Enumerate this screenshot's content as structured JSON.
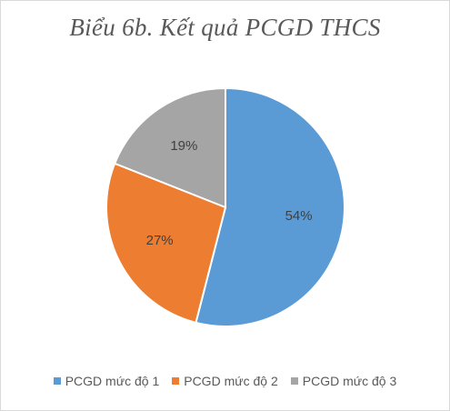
{
  "chart_data": {
    "type": "pie",
    "title": "Biểu 6b. Kết quả PCGD THCS",
    "categories": [
      "PCGD mức độ 1",
      "PCGD mức độ 2",
      "PCGD mức độ 3"
    ],
    "values": [
      54,
      27,
      19
    ],
    "value_labels": [
      "54%",
      "27%",
      "19%"
    ],
    "colors": [
      "#5B9BD5",
      "#ED7D31",
      "#A5A5A5"
    ],
    "legend_position": "bottom",
    "start_angle_deg": 0,
    "direction": "clockwise"
  }
}
